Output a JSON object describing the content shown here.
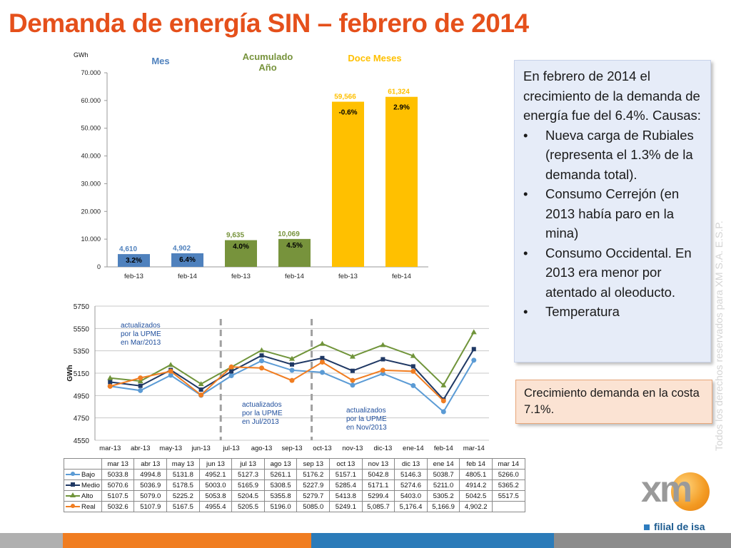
{
  "slide": {
    "title": "Demanda de energía SIN – febrero de 2014",
    "vertical_text": "Todos los derechos reservados para XM S.A. E.S.P.",
    "logo_text": "xm",
    "logo_sub": "filial de isa"
  },
  "info_box": {
    "intro": "En febrero de 2014 el crecimiento de la demanda de energía fue del 6.4%. Causas:",
    "bullets": [
      "Nueva carga de Rubiales (representa el 1.3% de la demanda total).",
      "Consumo Cerrejón (en 2013 había paro en la mina)",
      "Consumo Occidental. En 2013 era menor por atentado al oleoducto.",
      "Temperatura"
    ],
    "bullet_glyph": "•"
  },
  "note_box": {
    "text": "Crecimiento demanda en la costa 7.1%."
  },
  "colors": {
    "title": "#e5501b",
    "mes": "#4f81bd",
    "acumulado": "#77933c",
    "doce": "#ffc000",
    "bajo": "#5b9bd5",
    "medio": "#1f3864",
    "alto": "#70943a",
    "real": "#f07d21"
  },
  "chart_data": [
    {
      "type": "bar",
      "ylabel": "GWh",
      "ylim": [
        0,
        70000
      ],
      "yticks": [
        "0",
        "10.000",
        "20.000",
        "30.000",
        "40.000",
        "50.000",
        "60.000",
        "70.000"
      ],
      "groups": [
        {
          "name": "Mes",
          "color": "#4f81bd"
        },
        {
          "name": "Acumulado Año",
          "color": "#77933c"
        },
        {
          "name": "Doce Meses",
          "color": "#ffc000"
        }
      ],
      "categories": [
        "feb-13",
        "feb-14",
        "feb-13",
        "feb-14",
        "feb-13",
        "feb-14"
      ],
      "values": [
        4610,
        4902,
        9635,
        10069,
        59566,
        61324
      ],
      "value_labels": [
        "4,610",
        "4,902",
        "9,635",
        "10,069",
        "59,566",
        "61,324"
      ],
      "growth_labels": [
        "3.2%",
        "6.4%",
        "4.0%",
        "4.5%",
        "-0.6%",
        "2.9%"
      ],
      "group_index": [
        0,
        0,
        1,
        1,
        2,
        2
      ]
    },
    {
      "type": "line",
      "ylabel": "GWh",
      "ylim": [
        4550,
        5750
      ],
      "yticks": [
        "4550",
        "4750",
        "4950",
        "5150",
        "5350",
        "5550",
        "5750"
      ],
      "categories": [
        "mar-13",
        "abr-13",
        "may-13",
        "jun-13",
        "jul-13",
        "ago-13",
        "sep-13",
        "oct-13",
        "nov-13",
        "dic-13",
        "ene-14",
        "feb-14",
        "mar-14"
      ],
      "series": [
        {
          "name": "Bajo",
          "color": "#5b9bd5",
          "marker": "circle",
          "values": [
            5033.8,
            4994.8,
            5131.8,
            4952.1,
            5127.3,
            5261.1,
            5176.2,
            5157.1,
            5042.8,
            5146.3,
            5038.7,
            4805.1,
            5266.0
          ]
        },
        {
          "name": "Medio",
          "color": "#1f3864",
          "marker": "square",
          "values": [
            5070.6,
            5036.9,
            5178.5,
            5003.0,
            5165.9,
            5308.5,
            5227.9,
            5285.4,
            5171.1,
            5274.6,
            5211.0,
            4914.2,
            5365.2
          ]
        },
        {
          "name": "Alto",
          "color": "#70943a",
          "marker": "triangle",
          "values": [
            5107.5,
            5079.0,
            5225.2,
            5053.8,
            5204.5,
            5355.8,
            5279.7,
            5413.8,
            5299.4,
            5403.0,
            5305.2,
            5042.5,
            5517.5
          ]
        },
        {
          "name": "Real",
          "color": "#f07d21",
          "marker": "circle",
          "values": [
            5032.6,
            5107.9,
            5167.5,
            4955.4,
            5205.5,
            5196.0,
            5085.0,
            5249.1,
            5085.7,
            5176.4,
            5166.9,
            4902.2,
            null
          ]
        }
      ],
      "annotations": [
        {
          "text": "actualizados por la UPME en Mar/2013",
          "lines": [
            "actualizados",
            "por   la   UPME",
            "en Mar/2013"
          ]
        },
        {
          "text": "actualizados por la UPME en Jul/2013",
          "lines": [
            "actualizados",
            "por   la   UPME",
            "en Jul/2013"
          ]
        },
        {
          "text": "actualizados por la UPME en Nov/2013",
          "lines": [
            "actualizados",
            "por   la   UPME",
            "en Nov/2013"
          ]
        }
      ]
    }
  ],
  "table": {
    "headers": [
      "mar 13",
      "abr 13",
      "may 13",
      "jun 13",
      "jul 13",
      "ago 13",
      "sep 13",
      "oct 13",
      "nov 13",
      "dic 13",
      "ene 14",
      "feb 14",
      "mar 14"
    ],
    "rows": [
      {
        "label": "Bajo",
        "color": "#5b9bd5",
        "marker": "circle",
        "cells": [
          "5033.8",
          "4994.8",
          "5131.8",
          "4952.1",
          "5127.3",
          "5261.1",
          "5176.2",
          "5157.1",
          "5042.8",
          "5146.3",
          "5038.7",
          "4805.1",
          "5266.0"
        ]
      },
      {
        "label": "Medio",
        "color": "#1f3864",
        "marker": "square",
        "cells": [
          "5070.6",
          "5036.9",
          "5178.5",
          "5003.0",
          "5165.9",
          "5308.5",
          "5227.9",
          "5285.4",
          "5171.1",
          "5274.6",
          "5211.0",
          "4914.2",
          "5365.2"
        ]
      },
      {
        "label": "Alto",
        "color": "#70943a",
        "marker": "triangle",
        "cells": [
          "5107.5",
          "5079.0",
          "5225.2",
          "5053.8",
          "5204.5",
          "5355.8",
          "5279.7",
          "5413.8",
          "5299.4",
          "5403.0",
          "5305.2",
          "5042.5",
          "5517.5"
        ]
      },
      {
        "label": "Real",
        "color": "#f07d21",
        "marker": "circle",
        "cells": [
          "5032.6",
          "5107.9",
          "5167.5",
          "4955.4",
          "5205.5",
          "5196.0",
          "5085.0",
          "5249.1",
          "5,085.7",
          "5,176.4",
          "5,166.9",
          "4,902.2",
          ""
        ]
      }
    ]
  },
  "footer": {
    "colors": [
      "#a5a5a5",
      "#f07d21",
      "#2b7bb9",
      "#7f7f7f"
    ]
  }
}
